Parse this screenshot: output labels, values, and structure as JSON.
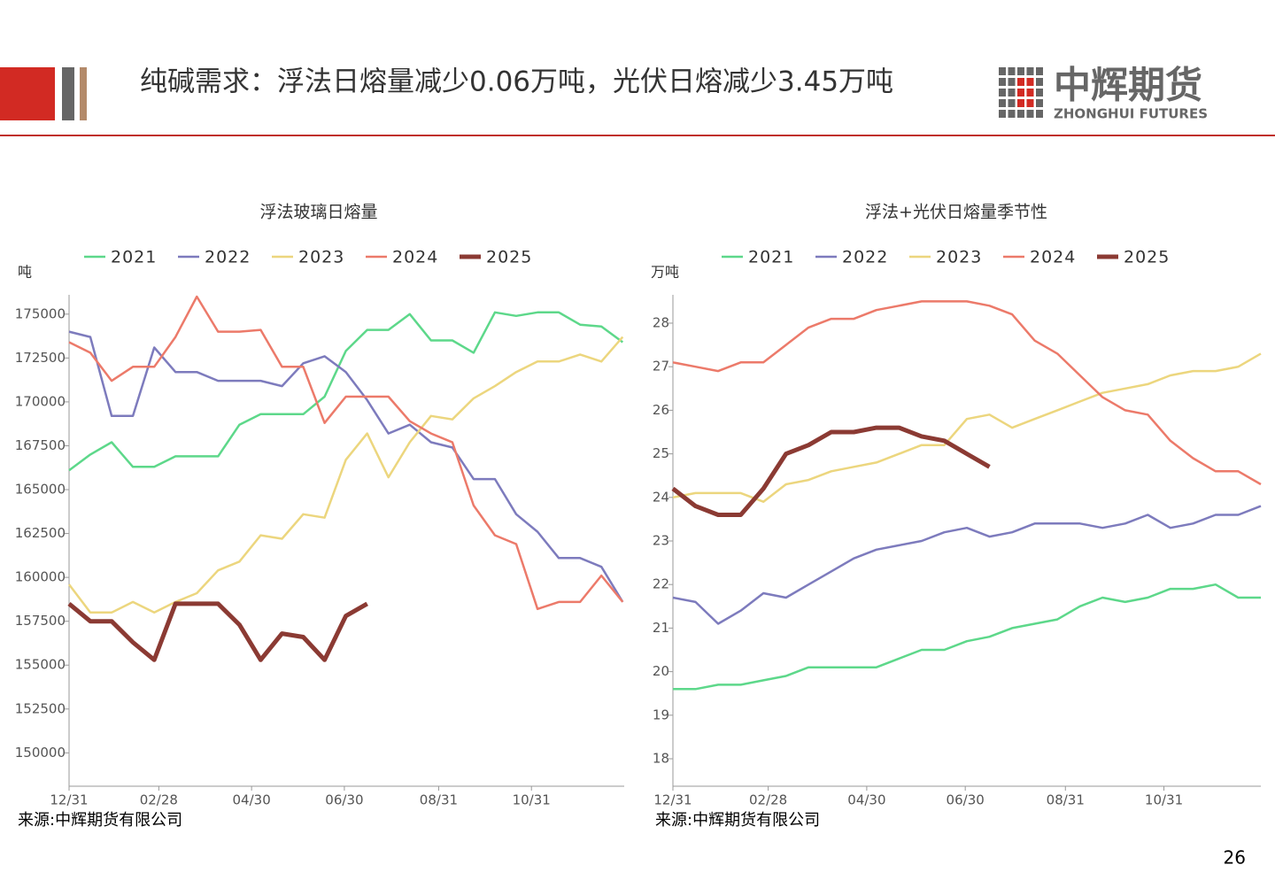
{
  "header": {
    "title": "纯碱需求：浮法日熔量减少0.06万吨，光伏日熔减少3.45万吨",
    "logo_cn": "中辉期货",
    "logo_en": "ZHONGHUI FUTURES"
  },
  "page_number": "26",
  "chart_data": [
    {
      "type": "line",
      "title": "浮法玻璃日熔量",
      "y_label": "吨",
      "source": "来源:中辉期货有限公司",
      "legend": "top",
      "x": [
        0,
        14,
        28,
        42,
        56,
        70,
        84,
        98,
        112,
        126,
        140,
        154,
        168,
        182,
        196,
        210,
        224,
        238,
        252,
        266,
        280,
        294,
        308,
        322,
        336,
        350,
        364
      ],
      "xlim": [
        0,
        365
      ],
      "xticks": [
        {
          "value": 0,
          "label": "12/31"
        },
        {
          "value": 59,
          "label": "02/28"
        },
        {
          "value": 120,
          "label": "04/30"
        },
        {
          "value": 181,
          "label": "06/30"
        },
        {
          "value": 243,
          "label": "08/31"
        },
        {
          "value": 304,
          "label": "10/31"
        }
      ],
      "ylim": [
        148100,
        176100
      ],
      "yticks": [
        150000,
        152500,
        155000,
        157500,
        160000,
        162500,
        165000,
        167500,
        170000,
        172500,
        175000
      ],
      "series": [
        {
          "name": "2021",
          "color": "#5dd88a",
          "values": [
            166100,
            167000,
            167700,
            166300,
            166300,
            166900,
            166900,
            166900,
            168700,
            169300,
            169300,
            169300,
            170300,
            172900,
            174100,
            174100,
            175000,
            173500,
            173500,
            172800,
            175100,
            174900,
            175100,
            175100,
            174400,
            174300,
            173400
          ]
        },
        {
          "name": "2022",
          "color": "#7d7bbd",
          "values": [
            174000,
            173700,
            169200,
            169200,
            173100,
            171700,
            171700,
            171200,
            171200,
            171200,
            170900,
            172200,
            172600,
            171700,
            170100,
            168200,
            168700,
            167700,
            167400,
            165600,
            165600,
            163600,
            162600,
            161100,
            161100,
            160600,
            158600
          ]
        },
        {
          "name": "2023",
          "color": "#ecd67e",
          "values": [
            159600,
            158000,
            158000,
            158600,
            158000,
            158600,
            159100,
            160400,
            160900,
            162400,
            162200,
            163600,
            163400,
            166700,
            168200,
            165700,
            167700,
            169200,
            169000,
            170200,
            170900,
            171700,
            172300,
            172300,
            172700,
            172300,
            173700
          ]
        },
        {
          "name": "2024",
          "color": "#ec7a6a",
          "values": [
            173400,
            172800,
            171200,
            172000,
            172000,
            173700,
            176000,
            174000,
            174000,
            174100,
            172000,
            172000,
            168800,
            170300,
            170300,
            170300,
            168900,
            168200,
            167700,
            164100,
            162400,
            161900,
            158200,
            158600,
            158600,
            160100,
            158600
          ]
        },
        {
          "name": "2025",
          "color": "#8b3a33",
          "values": [
            158500,
            157500,
            157500,
            156300,
            155300,
            158500,
            158500,
            158500,
            157300,
            155300,
            156800,
            156600,
            155300,
            157800,
            158500,
            null,
            null,
            null,
            null,
            null,
            null,
            null,
            null,
            null,
            null,
            null,
            null
          ]
        }
      ]
    },
    {
      "type": "line",
      "title": "浮法+光伏日熔量季节性",
      "y_label": "万吨",
      "source": "来源:中辉期货有限公司",
      "legend": "top",
      "x": [
        0,
        14,
        28,
        42,
        56,
        70,
        84,
        98,
        112,
        126,
        140,
        154,
        168,
        182,
        196,
        210,
        224,
        238,
        252,
        266,
        280,
        294,
        308,
        322,
        336,
        350,
        364
      ],
      "xlim": [
        0,
        364
      ],
      "xticks": [
        {
          "value": 0,
          "label": "12/31"
        },
        {
          "value": 59,
          "label": "02/28"
        },
        {
          "value": 120,
          "label": "04/30"
        },
        {
          "value": 181,
          "label": "06/30"
        },
        {
          "value": 243,
          "label": "08/31"
        },
        {
          "value": 304,
          "label": "10/31"
        }
      ],
      "ylim": [
        17.37,
        28.65
      ],
      "yticks": [
        18,
        19,
        20,
        21,
        22,
        23,
        24,
        25,
        26,
        27,
        28
      ],
      "series": [
        {
          "name": "2021",
          "color": "#5dd88a",
          "values": [
            19.6,
            19.6,
            19.7,
            19.7,
            19.8,
            19.9,
            20.1,
            20.1,
            20.1,
            20.1,
            20.3,
            20.5,
            20.5,
            20.7,
            20.8,
            21.0,
            21.1,
            21.2,
            21.5,
            21.7,
            21.6,
            21.7,
            21.9,
            21.9,
            22.0,
            21.7,
            21.7
          ]
        },
        {
          "name": "2022",
          "color": "#7d7bbd",
          "values": [
            21.7,
            21.6,
            21.1,
            21.4,
            21.8,
            21.7,
            22.0,
            22.3,
            22.6,
            22.8,
            22.9,
            23.0,
            23.2,
            23.3,
            23.1,
            23.2,
            23.4,
            23.4,
            23.4,
            23.3,
            23.4,
            23.6,
            23.3,
            23.4,
            23.6,
            23.6,
            23.8
          ]
        },
        {
          "name": "2023",
          "color": "#ecd67e",
          "values": [
            24.0,
            24.1,
            24.1,
            24.1,
            23.9,
            24.3,
            24.4,
            24.6,
            24.7,
            24.8,
            25.0,
            25.2,
            25.2,
            25.8,
            25.9,
            25.6,
            25.8,
            26.0,
            26.2,
            26.4,
            26.5,
            26.6,
            26.8,
            26.9,
            26.9,
            27.0,
            27.3
          ]
        },
        {
          "name": "2024",
          "color": "#ec7a6a",
          "values": [
            27.1,
            27.0,
            26.9,
            27.1,
            27.1,
            27.5,
            27.9,
            28.1,
            28.1,
            28.3,
            28.4,
            28.5,
            28.5,
            28.5,
            28.4,
            28.2,
            27.6,
            27.3,
            26.8,
            26.3,
            26.0,
            25.9,
            25.3,
            24.9,
            24.6,
            24.6,
            24.3
          ]
        },
        {
          "name": "2025",
          "color": "#8b3a33",
          "values": [
            24.2,
            23.8,
            23.6,
            23.6,
            24.2,
            25.0,
            25.2,
            25.5,
            25.5,
            25.6,
            25.6,
            25.4,
            25.3,
            25.0,
            24.7,
            null,
            null,
            null,
            null,
            null,
            null,
            null,
            null,
            null,
            null,
            null,
            null
          ]
        }
      ]
    }
  ]
}
